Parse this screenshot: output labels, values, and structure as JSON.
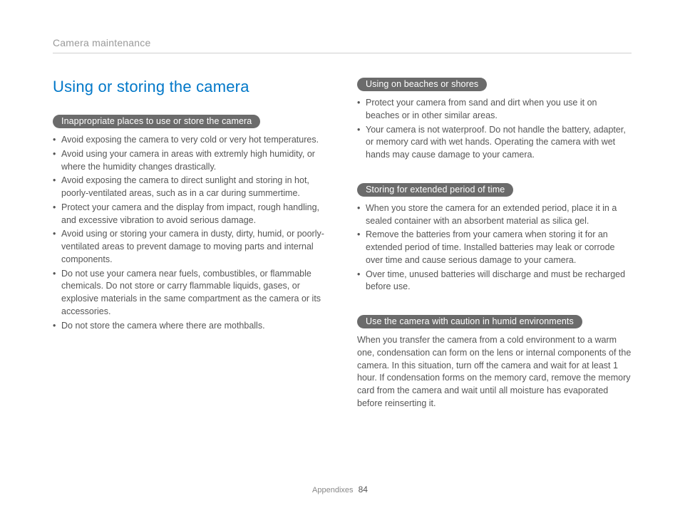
{
  "header": {
    "breadcrumb": "Camera maintenance"
  },
  "left": {
    "heading": "Using or storing the camera",
    "section1": {
      "pill": "Inappropriate places to use or store the camera",
      "items": [
        "Avoid exposing the camera to very cold or very hot temperatures.",
        "Avoid using your camera in areas with extremly high humidity, or where the humidity changes drastically.",
        "Avoid exposing the camera to direct sunlight and storing in hot, poorly-ventilated areas, such as in a car during summertime.",
        "Protect your camera and the display from impact, rough handling, and excessive vibration to avoid serious damage.",
        "Avoid using or storing your camera in dusty, dirty, humid, or poorly-ventilated areas to prevent damage to moving parts and internal components.",
        "Do not use your camera near fuels, combustibles, or flammable chemicals. Do not store or carry flammable liquids, gases, or explosive materials in the same compartment as the camera or its accessories.",
        "Do not store the camera where there are mothballs."
      ]
    }
  },
  "right": {
    "section1": {
      "pill": "Using on beaches or shores",
      "items": [
        "Protect your camera from sand and dirt when you use it on beaches or in other similar areas.",
        "Your camera is not waterproof. Do not handle the battery, adapter, or memory card with wet hands. Operating the camera with wet hands may cause damage to your camera."
      ]
    },
    "section2": {
      "pill": "Storing for extended period of time",
      "items": [
        "When you store the camera for an extended period, place it in a sealed container with an absorbent material as silica gel.",
        "Remove the batteries from your camera when storing it for an extended period of time. Installed batteries may leak or corrode over time and cause serious damage to your camera.",
        "Over time, unused batteries will discharge and must be recharged before use."
      ]
    },
    "section3": {
      "pill": "Use the camera with caution in humid environments",
      "para": "When you transfer the camera from a cold environment to a warm one, condensation can form on the lens or internal components of the camera. In this situation, turn off the camera and wait for at least 1 hour. If condensation forms on the memory card, remove the memory card from the camera and wait until all moisture has evaporated before reinserting it."
    }
  },
  "footer": {
    "label": "Appendixes",
    "page": "84"
  }
}
